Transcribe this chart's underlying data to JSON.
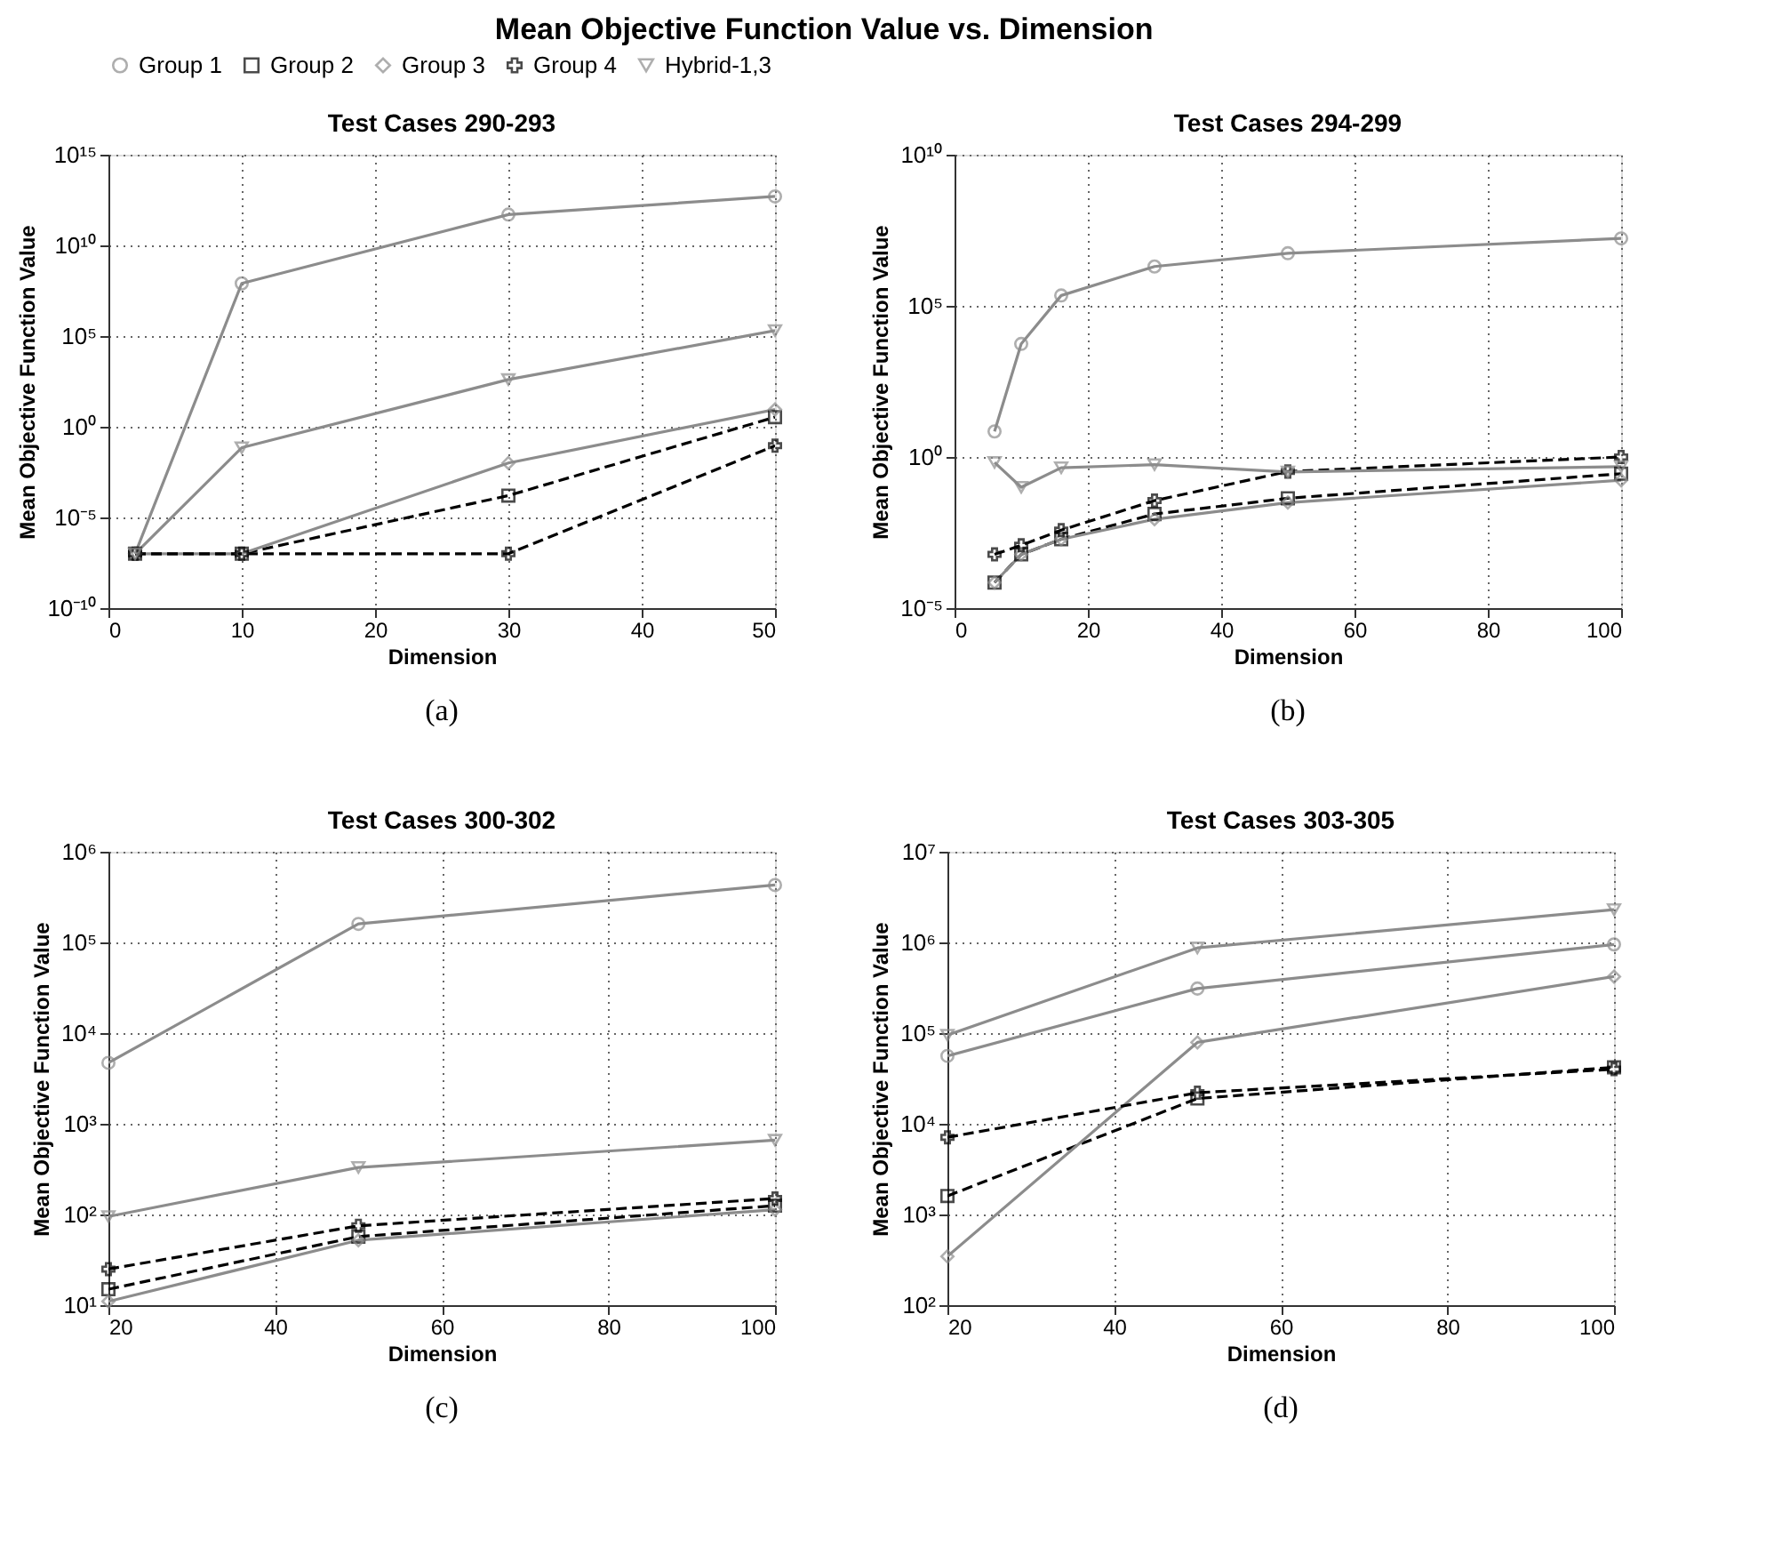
{
  "chart_data": [
    {
      "type": "line",
      "title": "Test Cases 290-293",
      "xlabel": "Dimension",
      "ylabel": "Mean Objective Function Value",
      "annotations": [
        "Mean Objective Function Value vs. Dimension",
        "(a)"
      ],
      "log": "y",
      "grid": true,
      "legend": "top",
      "x": [
        2,
        10,
        30,
        50
      ],
      "xlim": [
        0,
        50
      ],
      "xticks": [
        0,
        10,
        20,
        30,
        40,
        50
      ],
      "ylim": [
        1e-10,
        1000000000000000.0
      ],
      "yticks": [
        {
          "value": 1e-10,
          "label": "10⁻¹⁰"
        },
        {
          "value": 1e-05,
          "label": "10⁻⁵"
        },
        {
          "value": 1,
          "label": "10⁰"
        },
        {
          "value": 100000.0,
          "label": "10⁵"
        },
        {
          "value": 10000000000.0,
          "label": "10¹⁰"
        },
        {
          "value": 1000000000000000.0,
          "label": "10¹⁵"
        }
      ],
      "series": [
        {
          "name": "Group 1",
          "color": "#8c8c8c",
          "marker": "circle",
          "line_style": "solid",
          "values": [
            1e-07,
            80000000.0,
            500000000000.0,
            5000000000000.0
          ]
        },
        {
          "name": "Group 2",
          "color": "#000000",
          "marker": "square",
          "line_style": "dashed",
          "values": [
            1e-07,
            1e-07,
            0.00016,
            3.4
          ]
        },
        {
          "name": "Group 3",
          "color": "#8c8c8c",
          "marker": "diamond",
          "line_style": "solid",
          "values": [
            1e-07,
            1e-07,
            0.01,
            9
          ]
        },
        {
          "name": "Group 4",
          "color": "#000000",
          "marker": "cross",
          "line_style": "dashed",
          "values": [
            1e-07,
            1e-07,
            1e-07,
            0.09
          ]
        },
        {
          "name": "Hybrid-1,3",
          "color": "#8c8c8c",
          "marker": "triangle",
          "line_style": "solid",
          "values": [
            1e-07,
            0.07,
            400,
            200000.0
          ]
        }
      ]
    },
    {
      "type": "line",
      "title": "Test Cases 294-299",
      "xlabel": "Dimension",
      "ylabel": "Mean Objective Function Value",
      "annotations": [
        "(b)"
      ],
      "log": "y",
      "grid": true,
      "x": [
        6,
        10,
        16,
        30,
        50,
        100
      ],
      "xlim": [
        0,
        100
      ],
      "xticks": [
        0,
        20,
        40,
        60,
        80,
        100
      ],
      "ylim": [
        1e-05,
        10000000000.0
      ],
      "yticks": [
        {
          "value": 1e-05,
          "label": "10⁻⁵"
        },
        {
          "value": 1,
          "label": "10⁰"
        },
        {
          "value": 100000.0,
          "label": "10⁵"
        },
        {
          "value": 10000000000.0,
          "label": "10¹⁰"
        }
      ],
      "series": [
        {
          "name": "Group 1",
          "color": "#8c8c8c",
          "marker": "circle",
          "line_style": "solid",
          "values": [
            7,
            5500,
            220000.0,
            2000000.0,
            5500000.0,
            17000000.0
          ]
        },
        {
          "name": "Group 2",
          "color": "#000000",
          "marker": "square",
          "line_style": "dashed",
          "values": [
            7e-05,
            0.0006,
            0.0019,
            0.013,
            0.043,
            0.28
          ]
        },
        {
          "name": "Group 3",
          "color": "#8c8c8c",
          "marker": "diamond",
          "line_style": "solid",
          "values": [
            7e-05,
            0.0006,
            0.0019,
            0.0087,
            0.031,
            0.17
          ]
        },
        {
          "name": "Group 4",
          "color": "#000000",
          "marker": "cross",
          "line_style": "dashed",
          "values": [
            0.0006,
            0.0012,
            0.0038,
            0.036,
            0.33,
            1
          ]
        },
        {
          "name": "Hybrid-1,3",
          "color": "#8c8c8c",
          "marker": "triangle",
          "line_style": "solid",
          "values": [
            0.66,
            0.1,
            0.44,
            0.56,
            0.32,
            0.48
          ]
        }
      ]
    },
    {
      "type": "line",
      "title": "Test Cases 300-302",
      "xlabel": "Dimension",
      "ylabel": "Mean Objective Function Value",
      "annotations": [
        "(c)"
      ],
      "log": "y",
      "grid": true,
      "x": [
        20,
        50,
        100
      ],
      "xlim": [
        20,
        100
      ],
      "xticks": [
        20,
        40,
        60,
        80,
        100
      ],
      "ylim": [
        10,
        1000000.0
      ],
      "yticks": [
        {
          "value": 10,
          "label": "10¹"
        },
        {
          "value": 100,
          "label": "10²"
        },
        {
          "value": 1000,
          "label": "10³"
        },
        {
          "value": 10000.0,
          "label": "10⁴"
        },
        {
          "value": 100000.0,
          "label": "10⁵"
        },
        {
          "value": 1000000.0,
          "label": "10⁶"
        }
      ],
      "series": [
        {
          "name": "Group 1",
          "color": "#8c8c8c",
          "marker": "circle",
          "line_style": "solid",
          "values": [
            4700,
            160000.0,
            430000.0
          ]
        },
        {
          "name": "Group 2",
          "color": "#000000",
          "marker": "square",
          "line_style": "dashed",
          "values": [
            15,
            57,
            125
          ]
        },
        {
          "name": "Group 3",
          "color": "#8c8c8c",
          "marker": "diamond",
          "line_style": "solid",
          "values": [
            11,
            52,
            113
          ]
        },
        {
          "name": "Group 4",
          "color": "#000000",
          "marker": "cross",
          "line_style": "dashed",
          "values": [
            25,
            75,
            150
          ]
        },
        {
          "name": "Hybrid-1,3",
          "color": "#8c8c8c",
          "marker": "triangle",
          "line_style": "solid",
          "values": [
            95,
            330,
            660
          ]
        }
      ]
    },
    {
      "type": "line",
      "title": "Test Cases 303-305",
      "xlabel": "Dimension",
      "ylabel": "Mean Objective Function Value",
      "annotations": [
        "(d)"
      ],
      "log": "y",
      "grid": true,
      "x": [
        20,
        50,
        100
      ],
      "xlim": [
        20,
        100
      ],
      "xticks": [
        20,
        40,
        60,
        80,
        100
      ],
      "ylim": [
        100,
        10000000.0
      ],
      "yticks": [
        {
          "value": 100,
          "label": "10²"
        },
        {
          "value": 1000,
          "label": "10³"
        },
        {
          "value": 10000.0,
          "label": "10⁴"
        },
        {
          "value": 100000.0,
          "label": "10⁵"
        },
        {
          "value": 1000000.0,
          "label": "10⁶"
        },
        {
          "value": 10000000.0,
          "label": "10⁷"
        }
      ],
      "series": [
        {
          "name": "Group 1",
          "color": "#8c8c8c",
          "marker": "circle",
          "line_style": "solid",
          "values": [
            56000.0,
            310000.0,
            950000.0
          ]
        },
        {
          "name": "Group 2",
          "color": "#000000",
          "marker": "square",
          "line_style": "dashed",
          "values": [
            1600,
            19000.0,
            42000.0
          ]
        },
        {
          "name": "Group 3",
          "color": "#8c8c8c",
          "marker": "diamond",
          "line_style": "solid",
          "values": [
            345,
            79000.0,
            420000.0
          ]
        },
        {
          "name": "Group 4",
          "color": "#000000",
          "marker": "cross",
          "line_style": "dashed",
          "values": [
            7100,
            22000.0,
            40000.0
          ]
        },
        {
          "name": "Hybrid-1,3",
          "color": "#8c8c8c",
          "marker": "triangle",
          "line_style": "solid",
          "values": [
            95000.0,
            870000.0,
            2300000.0
          ]
        }
      ]
    }
  ]
}
